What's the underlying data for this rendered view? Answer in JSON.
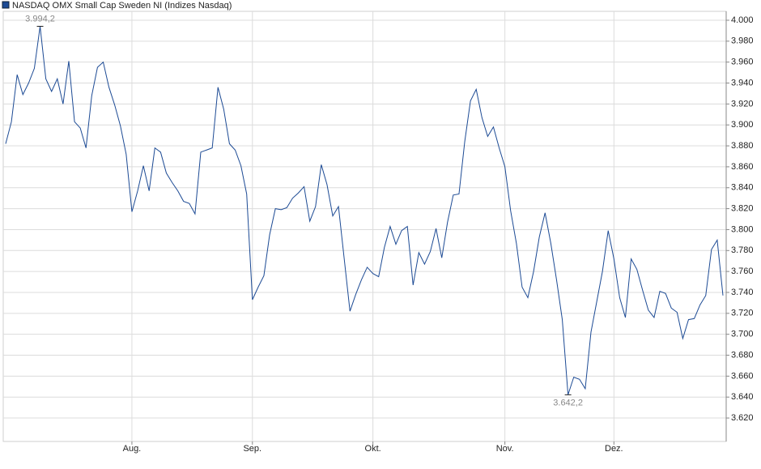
{
  "chart_data": {
    "type": "line",
    "categories": [
      null,
      null,
      null,
      null,
      null,
      null,
      null,
      null,
      null,
      null,
      null,
      null,
      null,
      null,
      null,
      null,
      null,
      null,
      null,
      null,
      null,
      null,
      "Aug.",
      null,
      null,
      null,
      null,
      null,
      null,
      null,
      null,
      null,
      null,
      null,
      null,
      null,
      null,
      null,
      null,
      null,
      null,
      null,
      null,
      "Sep.",
      null,
      null,
      null,
      null,
      null,
      null,
      null,
      null,
      null,
      null,
      null,
      null,
      null,
      null,
      null,
      null,
      null,
      null,
      null,
      null,
      "Okt.",
      null,
      null,
      null,
      null,
      null,
      null,
      null,
      null,
      null,
      null,
      null,
      null,
      null,
      null,
      null,
      null,
      null,
      null,
      null,
      null,
      null,
      null,
      "Nov.",
      null,
      null,
      null,
      null,
      null,
      null,
      null,
      null,
      null,
      null,
      null,
      null,
      null,
      null,
      null,
      null,
      null,
      null,
      "Dez.",
      null,
      null,
      null,
      null,
      null,
      null,
      null,
      null,
      null,
      null,
      null,
      null,
      null,
      null,
      null,
      null,
      null,
      null,
      null
    ],
    "series": [
      {
        "name": "NASDAQ OMX Small Cap Sweden NI (Indizes Nasdaq)",
        "color": "#1c4a94",
        "values": [
          3882,
          3903,
          3948,
          3929,
          3940,
          3954,
          3994.2,
          3944,
          3932,
          3944,
          3920,
          3961,
          3903,
          3897,
          3878,
          3928,
          3955,
          3960,
          3936,
          3919,
          3899,
          3872,
          3817,
          3837,
          3861,
          3837,
          3878,
          3874,
          3854,
          3845,
          3837,
          3827,
          3825,
          3815,
          3874,
          3876,
          3878,
          3936,
          3915,
          3882,
          3876,
          3861,
          3834,
          3733,
          3745,
          3756,
          3795,
          3820,
          3819,
          3821,
          3830,
          3835,
          3841,
          3808,
          3822,
          3862,
          3843,
          3813,
          3822,
          3772,
          3722,
          3738,
          3752,
          3764,
          3758,
          3755,
          3783,
          3803,
          3786,
          3799,
          3803,
          3747,
          3778,
          3767,
          3779,
          3801,
          3773,
          3807,
          3833,
          3834,
          3884,
          3923,
          3934,
          3907,
          3889,
          3898,
          3878,
          3860,
          3818,
          3787,
          3745,
          3735,
          3760,
          3793,
          3816,
          3787,
          3752,
          3714,
          3642.2,
          3659,
          3657,
          3648,
          3702,
          3731,
          3760,
          3799,
          3772,
          3735,
          3716,
          3772,
          3762,
          3742,
          3723,
          3716,
          3741,
          3739,
          3725,
          3721,
          3696,
          3714,
          3715,
          3728,
          3737,
          3781,
          3790,
          3737
        ],
        "value_labels": [
          null,
          null,
          null,
          null,
          null,
          null,
          "3.994,2",
          null,
          null,
          null,
          null,
          null,
          null,
          null,
          null,
          null,
          null,
          null,
          null,
          null,
          null,
          null,
          null,
          null,
          null,
          null,
          null,
          null,
          null,
          null,
          null,
          null,
          null,
          null,
          null,
          null,
          null,
          null,
          null,
          null,
          null,
          null,
          null,
          null,
          null,
          null,
          null,
          null,
          null,
          null,
          null,
          null,
          null,
          null,
          null,
          null,
          null,
          null,
          null,
          null,
          null,
          null,
          null,
          null,
          null,
          null,
          null,
          null,
          null,
          null,
          null,
          null,
          null,
          null,
          null,
          null,
          null,
          null,
          null,
          null,
          null,
          null,
          null,
          null,
          null,
          null,
          null,
          null,
          null,
          null,
          null,
          null,
          null,
          null,
          null,
          null,
          null,
          null,
          "3.642,2",
          null,
          null,
          null,
          null,
          null,
          null,
          null,
          null,
          null,
          null,
          null,
          null,
          null,
          null,
          null,
          null,
          null,
          null,
          null,
          null,
          null,
          null,
          null,
          null,
          null,
          null,
          null
        ]
      }
    ],
    "ylim": [
      3597.6,
      4008.5
    ],
    "yticks": [
      {
        "value": 3620,
        "label": "3.620"
      },
      {
        "value": 3640,
        "label": "3.640"
      },
      {
        "value": 3660,
        "label": "3.660"
      },
      {
        "value": 3680,
        "label": "3.680"
      },
      {
        "value": 3700,
        "label": "3.700"
      },
      {
        "value": 3720,
        "label": "3.720"
      },
      {
        "value": 3740,
        "label": "3.740"
      },
      {
        "value": 3760,
        "label": "3.760"
      },
      {
        "value": 3780,
        "label": "3.780"
      },
      {
        "value": 3800,
        "label": "3.800"
      },
      {
        "value": 3820,
        "label": "3.820"
      },
      {
        "value": 3840,
        "label": "3.840"
      },
      {
        "value": 3860,
        "label": "3.860"
      },
      {
        "value": 3880,
        "label": "3.880"
      },
      {
        "value": 3900,
        "label": "3.900"
      },
      {
        "value": 3920,
        "label": "3.920"
      },
      {
        "value": 3940,
        "label": "3.940"
      },
      {
        "value": 3960,
        "label": "3.960"
      },
      {
        "value": 3980,
        "label": "3.980"
      },
      {
        "value": 4000,
        "label": "4.000"
      }
    ],
    "grid": true,
    "legend": "top-left"
  }
}
